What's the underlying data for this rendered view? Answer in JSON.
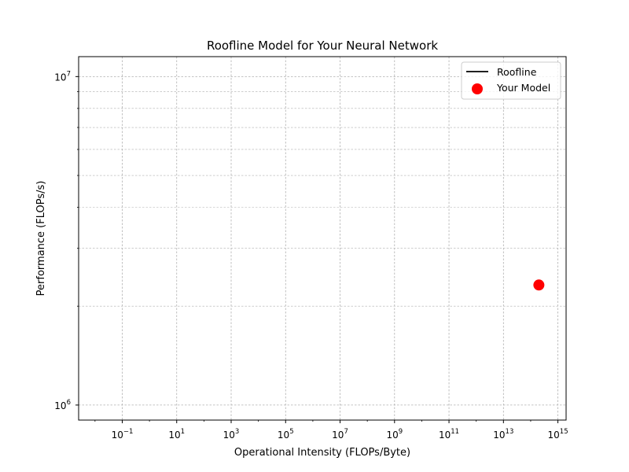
{
  "chart_data": {
    "type": "scatter",
    "title": "Roofline Model for Your Neural Network",
    "xlabel": "Operational Intensity (FLOPs/Byte)",
    "ylabel": "Performance (FLOPs/s)",
    "xscale": "log",
    "yscale": "log",
    "xlim": [
      0.0025,
      2000000000000000.0
    ],
    "ylim": [
      900000,
      11500000
    ],
    "grid": true,
    "legend_position": "top-right",
    "x_ticks": [
      {
        "base": "10",
        "exp": "−1",
        "value": 0.1
      },
      {
        "base": "10",
        "exp": "1",
        "value": 10
      },
      {
        "base": "10",
        "exp": "3",
        "value": 1000
      },
      {
        "base": "10",
        "exp": "5",
        "value": 100000
      },
      {
        "base": "10",
        "exp": "7",
        "value": 10000000
      },
      {
        "base": "10",
        "exp": "9",
        "value": 1000000000
      },
      {
        "base": "10",
        "exp": "11",
        "value": 100000000000
      },
      {
        "base": "10",
        "exp": "13",
        "value": 10000000000000
      },
      {
        "base": "10",
        "exp": "15",
        "value": 1000000000000000
      }
    ],
    "y_ticks": [
      {
        "base": "10",
        "exp": "6",
        "value": 1000000
      },
      {
        "base": "10",
        "exp": "7",
        "value": 10000000
      }
    ],
    "series": [
      {
        "name": "Roofline",
        "kind": "line",
        "color": "#000000",
        "x": [],
        "y": []
      },
      {
        "name": "Your Model",
        "kind": "scatter",
        "color": "#ff0000",
        "x": [
          200000000000000.0
        ],
        "y": [
          2320000
        ]
      }
    ]
  }
}
